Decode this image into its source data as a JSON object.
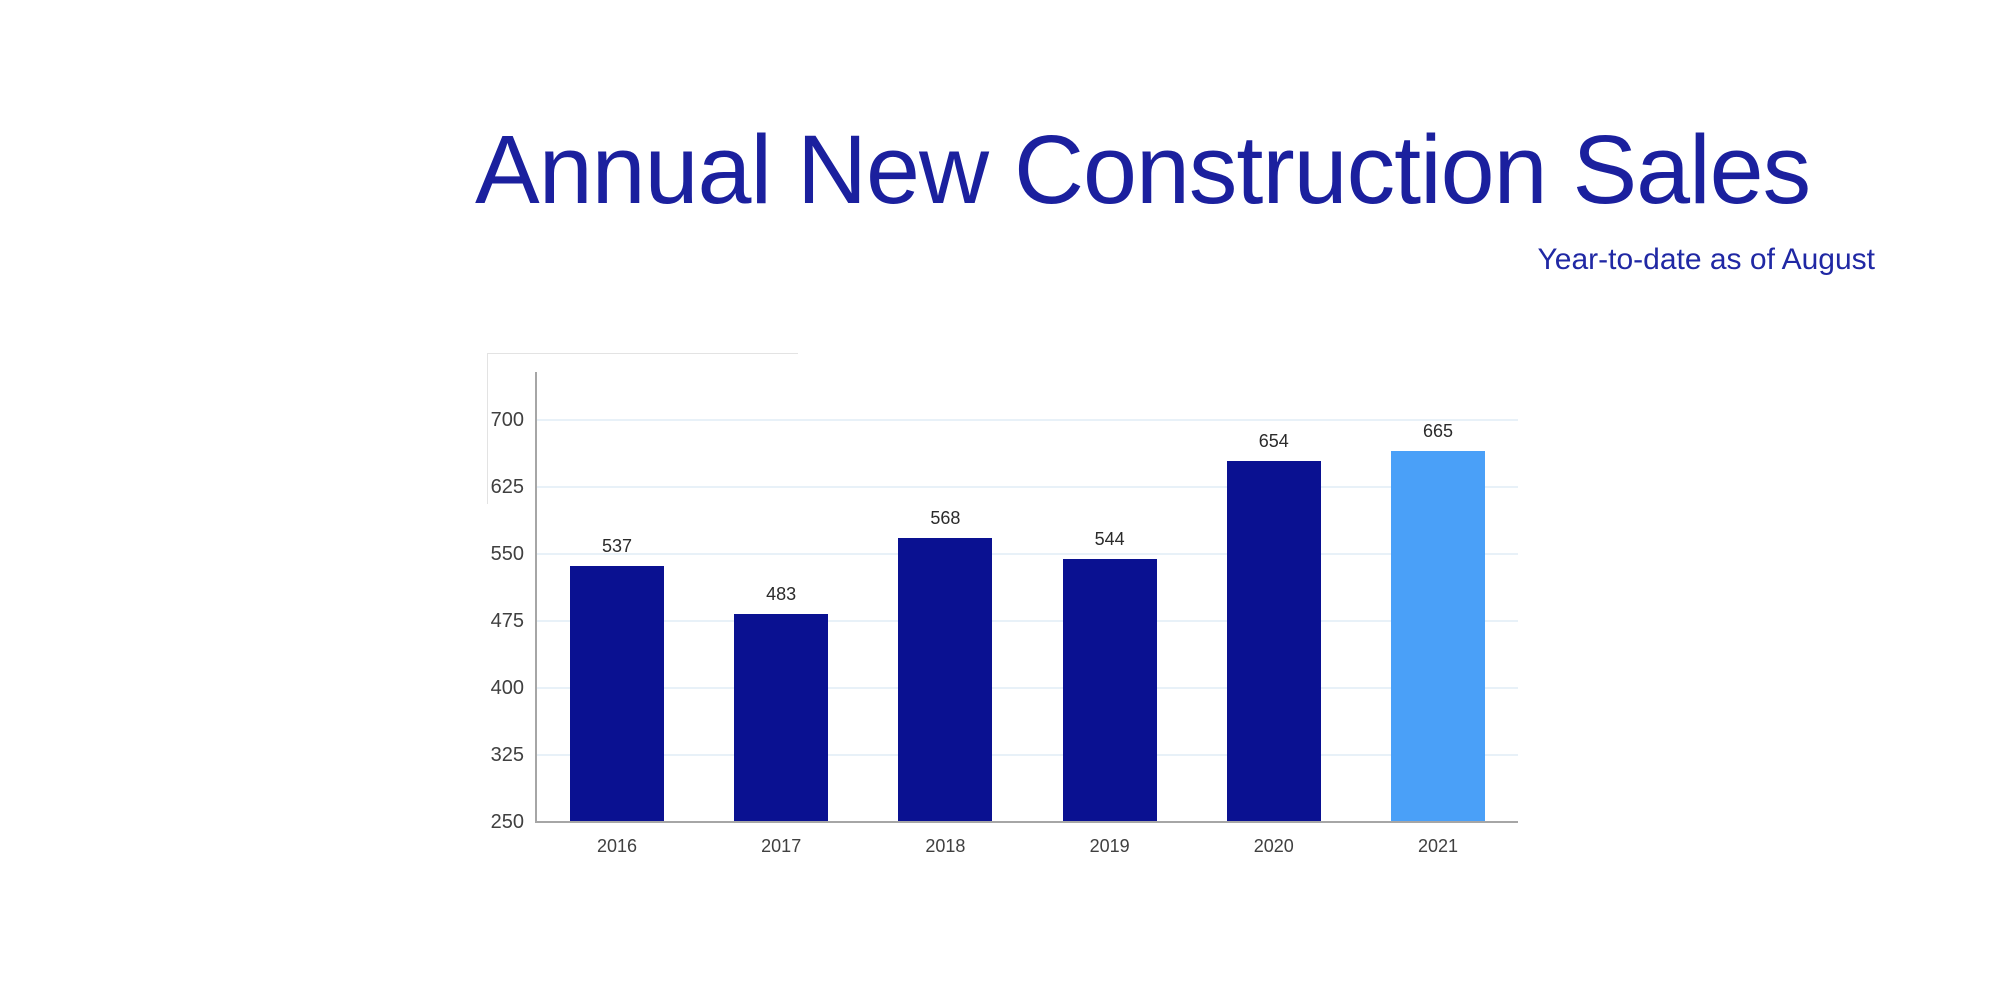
{
  "chart_data": {
    "type": "bar",
    "title": "Annual New Construction Sales",
    "subtitle": "Year-to-date as of August",
    "categories": [
      "2016",
      "2017",
      "2018",
      "2019",
      "2020",
      "2021"
    ],
    "values": [
      537,
      483,
      568,
      544,
      654,
      665
    ],
    "highlight_index": 5,
    "highlight_category": "2021",
    "y_ticks": [
      700,
      625,
      550,
      475,
      400,
      325,
      250
    ],
    "ylim": [
      250,
      753
    ],
    "xlabel": "",
    "ylabel": "",
    "grid": "horizontal",
    "legend_position": "none",
    "colors": {
      "bar": "#0a1191",
      "bar_highlight": "#4aa0f8",
      "title_text": "#1b209e",
      "subtitle_text": "#2028a4",
      "gridline": "#e8f1f8",
      "axis_line": "#a6a6a6",
      "tick_label": "#404040",
      "value_label": "#2b2b2b",
      "background": "#ffffff"
    }
  }
}
